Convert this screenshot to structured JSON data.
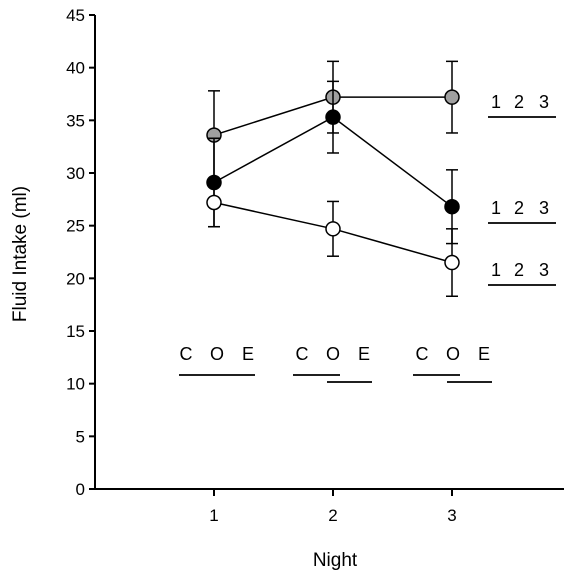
{
  "chart_data": {
    "type": "line",
    "xlabel": "Night",
    "ylabel": "Fluid Intake (ml)",
    "categories": [
      "1",
      "2",
      "3"
    ],
    "ylim": [
      0,
      45
    ],
    "yticks": [
      "0",
      "5",
      "10",
      "15",
      "20",
      "25",
      "30",
      "35",
      "40",
      "45"
    ],
    "grid": false,
    "series": [
      {
        "color": "#a0a0a0",
        "marker": "gray-circle",
        "values": [
          33.6,
          37.2,
          37.2
        ],
        "errors": [
          4.2,
          3.4,
          3.4
        ]
      },
      {
        "color": "#000000",
        "marker": "filled-circle",
        "values": [
          29.1,
          35.3,
          26.8
        ],
        "errors": [
          4.2,
          3.4,
          3.5
        ]
      },
      {
        "color": "#ffffff",
        "marker": "open-circle",
        "values": [
          27.2,
          24.7,
          21.5
        ],
        "errors": [
          2.3,
          2.6,
          3.2
        ]
      }
    ],
    "annotations": {
      "night_groups": {
        "labels": [
          "C",
          "O",
          "E"
        ],
        "underlines": [
          [
            "C O E"
          ],
          [
            "C O",
            "O E"
          ],
          [
            "C O",
            "O E"
          ]
        ]
      },
      "series_groups": {
        "labels": [
          "1",
          "2",
          "3"
        ]
      }
    }
  }
}
